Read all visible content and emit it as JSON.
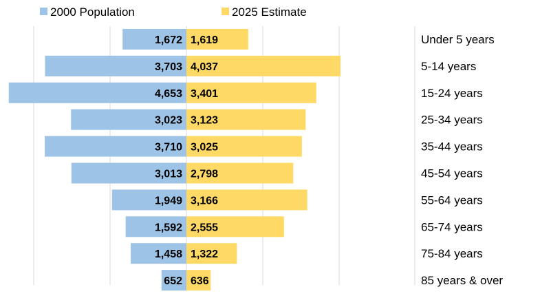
{
  "chart_data": {
    "type": "bar",
    "orientation": "horizontal",
    "layout": "population-pyramid",
    "categories": [
      "Under 5 years",
      "5-14 years",
      "15-24 years",
      "25-34 years",
      "35-44 years",
      "45-54 years",
      "55-64 years",
      "65-74 years",
      "75-84 years",
      "85 years & over"
    ],
    "series": [
      {
        "name": "2000 Population",
        "color": "#9DC3E6",
        "side": "left",
        "values": [
          1672,
          3703,
          4653,
          3023,
          3710,
          3013,
          1949,
          1592,
          1458,
          652
        ],
        "labels": [
          "1,672",
          "3,703",
          "4,653",
          "3,023",
          "3,710",
          "3,013",
          "1,949",
          "1,592",
          "1,458",
          "652"
        ]
      },
      {
        "name": "2025 Estimate",
        "color": "#FFD966",
        "side": "right",
        "values": [
          1619,
          4037,
          3401,
          3123,
          3025,
          2798,
          3166,
          2555,
          1322,
          636
        ],
        "labels": [
          "1,619",
          "4,037",
          "3,401",
          "3,123",
          "3,025",
          "2,798",
          "3,166",
          "2,555",
          "1,322",
          "636"
        ]
      }
    ],
    "legend": "top-left",
    "category_labels": "right",
    "grid": true,
    "grid_step": 2000,
    "xlim": [
      -4700,
      4700
    ]
  }
}
